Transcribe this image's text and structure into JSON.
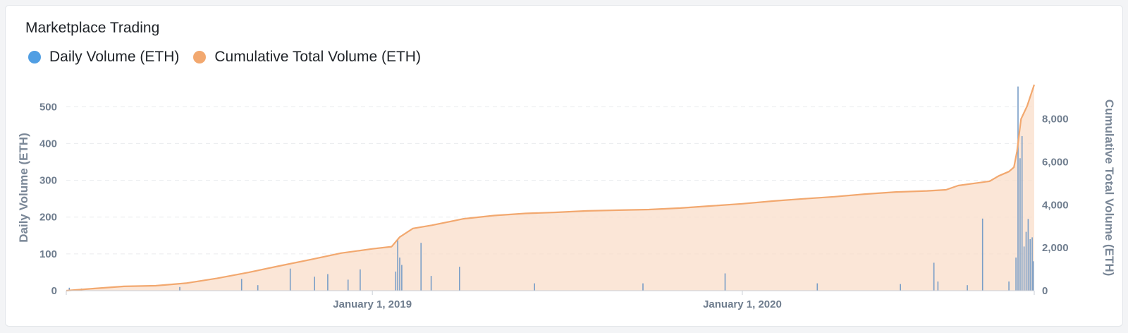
{
  "chart_data": {
    "type": "bar+area",
    "title": "Marketplace Trading",
    "legend": [
      {
        "name": "Daily Volume (ETH)",
        "color": "#509ee3"
      },
      {
        "name": "Cumulative Total Volume (ETH)",
        "color": "#f2a86f"
      }
    ],
    "x_range": [
      "2018-03-05",
      "2020-10-15"
    ],
    "x_ticks": [
      {
        "date": "2019-01-01",
        "label": "January 1, 2019"
      },
      {
        "date": "2020-01-01",
        "label": "January 1, 2020"
      }
    ],
    "y_left": {
      "label": "Daily Volume (ETH)",
      "range": [
        0,
        560
      ],
      "ticks": [
        "0",
        "100",
        "200",
        "300",
        "400",
        "500"
      ]
    },
    "y_right": {
      "label": "Cumulative Total Volume (ETH)",
      "range": [
        0,
        9600
      ],
      "ticks": [
        "0",
        "2,000",
        "4,000",
        "6,000",
        "8,000"
      ]
    },
    "grid": true,
    "cumulative": [
      [
        "2018-03-05",
        0
      ],
      [
        "2018-04-01",
        100
      ],
      [
        "2018-05-01",
        200
      ],
      [
        "2018-06-01",
        230
      ],
      [
        "2018-07-01",
        350
      ],
      [
        "2018-08-01",
        580
      ],
      [
        "2018-09-01",
        850
      ],
      [
        "2018-10-01",
        1150
      ],
      [
        "2018-11-01",
        1450
      ],
      [
        "2018-12-01",
        1750
      ],
      [
        "2019-01-01",
        1950
      ],
      [
        "2019-01-20",
        2050
      ],
      [
        "2019-01-28",
        2500
      ],
      [
        "2019-02-10",
        2900
      ],
      [
        "2019-03-01",
        3050
      ],
      [
        "2019-04-01",
        3350
      ],
      [
        "2019-05-01",
        3500
      ],
      [
        "2019-06-01",
        3600
      ],
      [
        "2019-07-01",
        3650
      ],
      [
        "2019-08-01",
        3720
      ],
      [
        "2019-09-01",
        3750
      ],
      [
        "2019-10-01",
        3780
      ],
      [
        "2019-11-01",
        3850
      ],
      [
        "2019-12-01",
        3950
      ],
      [
        "2020-01-01",
        4050
      ],
      [
        "2020-02-01",
        4180
      ],
      [
        "2020-03-01",
        4280
      ],
      [
        "2020-04-01",
        4380
      ],
      [
        "2020-05-01",
        4500
      ],
      [
        "2020-06-01",
        4600
      ],
      [
        "2020-07-01",
        4650
      ],
      [
        "2020-07-20",
        4700
      ],
      [
        "2020-08-01",
        4900
      ],
      [
        "2020-09-01",
        5100
      ],
      [
        "2020-09-10",
        5350
      ],
      [
        "2020-09-20",
        5550
      ],
      [
        "2020-09-25",
        5750
      ],
      [
        "2020-09-28",
        6500
      ],
      [
        "2020-10-02",
        8000
      ],
      [
        "2020-10-08",
        8600
      ],
      [
        "2020-10-15",
        9600
      ]
    ],
    "daily_spikes": [
      [
        "2018-03-08",
        8
      ],
      [
        "2018-03-20",
        6
      ],
      [
        "2018-06-25",
        10
      ],
      [
        "2018-08-25",
        32
      ],
      [
        "2018-09-10",
        15
      ],
      [
        "2018-10-12",
        60
      ],
      [
        "2018-11-05",
        38
      ],
      [
        "2018-11-18",
        45
      ],
      [
        "2018-12-08",
        30
      ],
      [
        "2018-12-20",
        58
      ],
      [
        "2019-01-24",
        52
      ],
      [
        "2019-01-26",
        140
      ],
      [
        "2019-01-28",
        90
      ],
      [
        "2019-01-30",
        70
      ],
      [
        "2019-02-18",
        130
      ],
      [
        "2019-02-28",
        40
      ],
      [
        "2019-03-28",
        65
      ],
      [
        "2019-06-10",
        20
      ],
      [
        "2019-09-25",
        20
      ],
      [
        "2019-12-15",
        47
      ],
      [
        "2020-03-15",
        20
      ],
      [
        "2020-06-05",
        18
      ],
      [
        "2020-07-08",
        76
      ],
      [
        "2020-07-12",
        25
      ],
      [
        "2020-08-10",
        15
      ],
      [
        "2020-08-25",
        196
      ],
      [
        "2020-09-20",
        25
      ],
      [
        "2020-09-27",
        90
      ],
      [
        "2020-09-29",
        555
      ],
      [
        "2020-10-01",
        360
      ],
      [
        "2020-10-03",
        420
      ],
      [
        "2020-10-05",
        120
      ],
      [
        "2020-10-07",
        160
      ],
      [
        "2020-10-09",
        195
      ],
      [
        "2020-10-11",
        140
      ],
      [
        "2020-10-13",
        145
      ],
      [
        "2020-10-14",
        80
      ]
    ]
  }
}
